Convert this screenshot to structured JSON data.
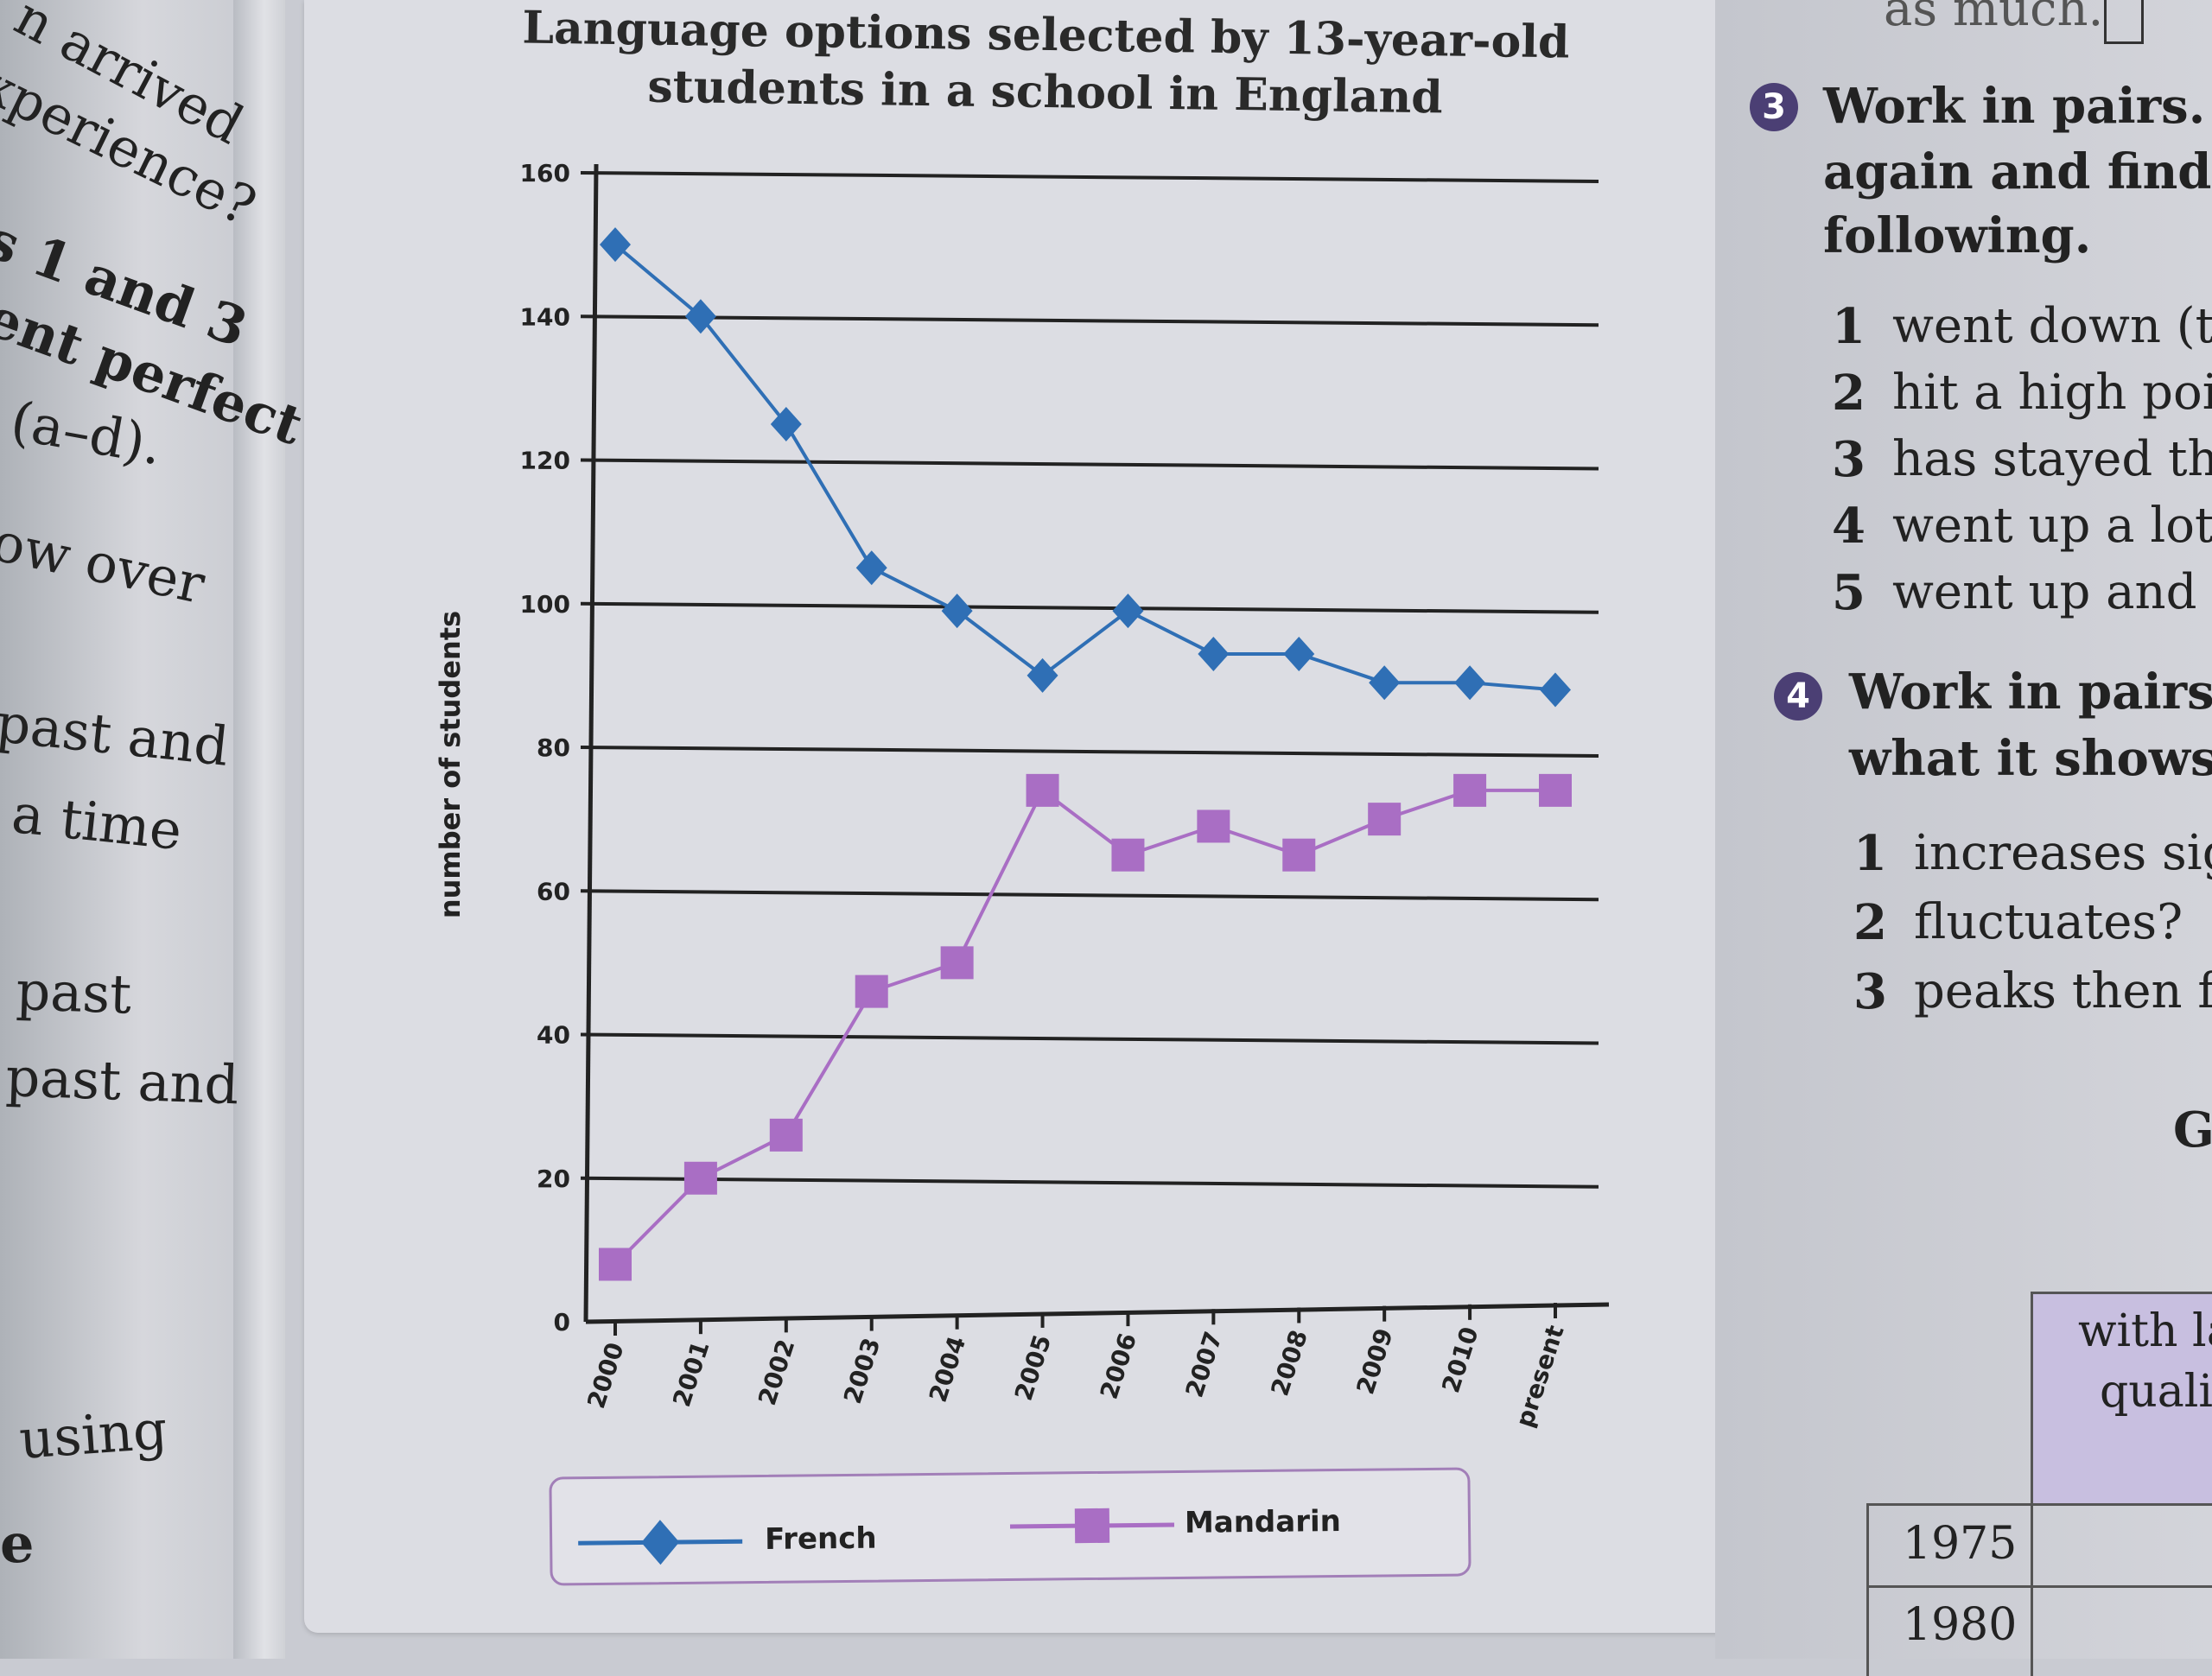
{
  "left_page": {
    "fragments": [
      "n arrived",
      "xperience?",
      "s 1 and 3",
      "ent perfect",
      "(a–d).",
      "ow over",
      "past and",
      "a time",
      "past",
      "past and",
      "using",
      "e"
    ]
  },
  "right_page": {
    "top_text": "as much.",
    "exercise3": {
      "badge": "3",
      "lines": [
        "Work in pairs. L",
        "again and find v",
        "following."
      ],
      "items": [
        {
          "num": "1",
          "text": "went down (t"
        },
        {
          "num": "2",
          "text": "hit a high poi"
        },
        {
          "num": "3",
          "text": "has stayed th"
        },
        {
          "num": "4",
          "text": "went up a lot"
        },
        {
          "num": "5",
          "text": "went up and"
        }
      ]
    },
    "exercise4": {
      "badge": "4",
      "lines": [
        "Work in pairs.",
        "what it shows."
      ],
      "items": [
        {
          "num": "1",
          "text": "increases sig"
        },
        {
          "num": "2",
          "text": "fluctuates?"
        },
        {
          "num": "3",
          "text": "peaks then f"
        }
      ]
    },
    "side_letter": "G",
    "table": {
      "header_lines": [
        "with la",
        "qualif"
      ],
      "rows": [
        "1975",
        "1980"
      ]
    }
  },
  "chart_data": {
    "type": "line",
    "title": "Language options selected by 13-year-old students in a school in England",
    "title_lines": [
      "Language options selected by 13-year-old",
      "students in a school in England"
    ],
    "ylabel": "number of students",
    "xlabel": "",
    "ylim": [
      0,
      160
    ],
    "yticks": [
      0,
      20,
      40,
      60,
      80,
      100,
      120,
      140,
      160
    ],
    "categories": [
      "2000",
      "2001",
      "2002",
      "2003",
      "2004",
      "2005",
      "2006",
      "2007",
      "2008",
      "2009",
      "2010",
      "present"
    ],
    "series": [
      {
        "name": "French",
        "color": "#2f6fb5",
        "marker": "diamond",
        "values": [
          150,
          140,
          125,
          105,
          99,
          90,
          99,
          93,
          93,
          89,
          89,
          88
        ]
      },
      {
        "name": "Mandarin",
        "color": "#a96ec4",
        "marker": "square",
        "values": [
          8,
          20,
          26,
          46,
          50,
          74,
          65,
          69,
          65,
          70,
          74,
          74
        ]
      }
    ],
    "grid": true,
    "legend_position": "bottom"
  }
}
